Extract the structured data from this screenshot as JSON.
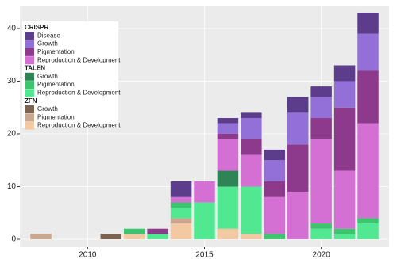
{
  "chart_data": {
    "type": "stacked-bar",
    "x": [
      2008,
      2011,
      2012,
      2013,
      2014,
      2015,
      2016,
      2017,
      2018,
      2019,
      2020,
      2021,
      2022
    ],
    "series": [
      {
        "group": "CRISPR",
        "name": "Disease",
        "color": "#5b3d8c",
        "values": [
          0,
          0,
          0,
          0,
          3,
          0,
          1,
          1,
          2,
          3,
          2,
          3,
          4
        ]
      },
      {
        "group": "CRISPR",
        "name": "Growth",
        "color": "#9370d8",
        "values": [
          0,
          0,
          0,
          0,
          0,
          0,
          2,
          4,
          4,
          6,
          4,
          5,
          7
        ]
      },
      {
        "group": "CRISPR",
        "name": "Pigmentation",
        "color": "#8e3a8c",
        "values": [
          0,
          0,
          0,
          1,
          0,
          0,
          1,
          3,
          3,
          9,
          4,
          12,
          10
        ]
      },
      {
        "group": "CRISPR",
        "name": "Reproduction & Development",
        "color": "#d46fd4",
        "values": [
          0,
          0,
          0,
          0,
          1,
          4,
          6,
          6,
          7,
          9,
          16,
          11,
          18
        ]
      },
      {
        "group": "TALEN",
        "name": "Growth",
        "color": "#2e8455",
        "values": [
          0,
          0,
          0,
          0,
          0,
          0,
          3,
          0,
          0,
          0,
          0,
          0,
          0
        ]
      },
      {
        "group": "TALEN",
        "name": "Pigmentation",
        "color": "#3cc46e",
        "values": [
          0,
          0,
          1,
          0,
          1,
          0,
          0,
          0,
          1,
          0,
          1,
          1,
          1
        ]
      },
      {
        "group": "TALEN",
        "name": "Reproduction & Development",
        "color": "#52e892",
        "values": [
          0,
          0,
          0,
          1,
          2,
          7,
          8,
          9,
          0,
          0,
          2,
          1,
          3
        ]
      },
      {
        "group": "ZFN",
        "name": "Growth",
        "color": "#7a6451",
        "values": [
          0,
          1,
          0,
          0,
          0,
          0,
          0,
          0,
          0,
          0,
          0,
          0,
          0
        ]
      },
      {
        "group": "ZFN",
        "name": "Pigmentation",
        "color": "#c9a78e",
        "values": [
          1,
          0,
          0,
          0,
          1,
          0,
          0,
          0,
          0,
          0,
          0,
          0,
          0
        ]
      },
      {
        "group": "ZFN",
        "name": "Reproduction & Development",
        "color": "#f2c9a3",
        "values": [
          0,
          0,
          1,
          0,
          3,
          0,
          2,
          1,
          0,
          0,
          0,
          0,
          0
        ]
      }
    ],
    "xlim": [
      2007.1,
      2022.9
    ],
    "xticks": [
      2010,
      2015,
      2020
    ],
    "ylim": [
      -1.5,
      44.2
    ],
    "yticks": [
      0,
      10,
      20,
      30,
      40
    ],
    "grid": true
  }
}
